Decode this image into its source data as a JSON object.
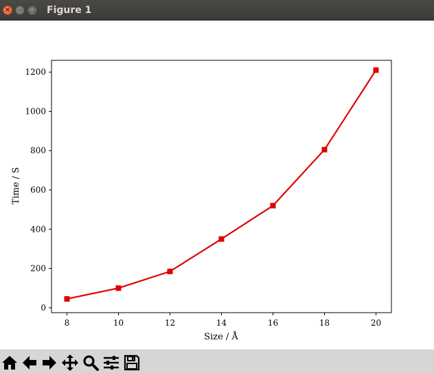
{
  "window": {
    "title": "Figure 1"
  },
  "toolbar": {
    "buttons": [
      {
        "name": "home-button",
        "icon": "home-icon"
      },
      {
        "name": "back-button",
        "icon": "arrow-left-icon"
      },
      {
        "name": "forward-button",
        "icon": "arrow-right-icon"
      },
      {
        "name": "pan-button",
        "icon": "move-icon"
      },
      {
        "name": "zoom-button",
        "icon": "magnifier-icon"
      },
      {
        "name": "subplots-button",
        "icon": "sliders-icon"
      },
      {
        "name": "save-button",
        "icon": "floppy-disk-icon"
      }
    ]
  },
  "chart_data": {
    "type": "line",
    "xlabel": "Size / Å",
    "ylabel": "Time / S",
    "x": [
      8,
      10,
      12,
      14,
      16,
      18,
      20
    ],
    "series": [
      {
        "values": [
          45,
          100,
          185,
          350,
          520,
          805,
          1210
        ],
        "color": "#e00000",
        "marker": "square"
      }
    ],
    "xlim": [
      7.4,
      20.6
    ],
    "ylim": [
      -25,
      1260
    ],
    "xticks": [
      "8",
      "10",
      "12",
      "14",
      "16",
      "18",
      "20"
    ],
    "yticks": [
      "0",
      "200",
      "400",
      "600",
      "800",
      "1000",
      "1200"
    ],
    "grid": false
  }
}
